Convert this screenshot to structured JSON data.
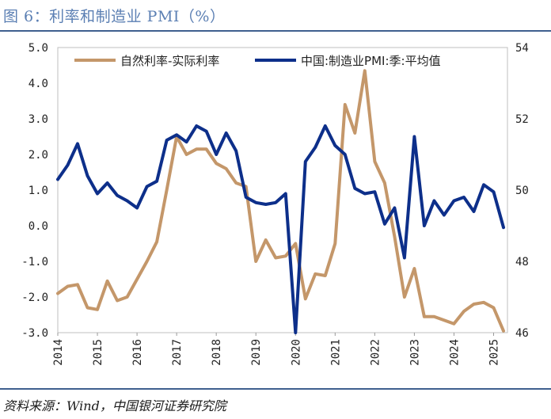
{
  "title": "图 6：利率和制造业 PMI（%）",
  "source": "资料来源：Wind，中国银河证券研究院",
  "chart_data": {
    "type": "line",
    "x_ticks": [
      "2014",
      "2015",
      "2016",
      "2017",
      "2018",
      "2019",
      "2020",
      "2021",
      "2022",
      "2023",
      "2024",
      "2025"
    ],
    "y_left": {
      "min": -3.0,
      "max": 5.0,
      "ticks": [
        "5.0",
        "4.0",
        "3.0",
        "2.0",
        "1.0",
        "0.0",
        "-1.0",
        "-2.0",
        "-3.0"
      ]
    },
    "y_right": {
      "min": 46,
      "max": 54,
      "ticks": [
        "54",
        "52",
        "50",
        "48",
        "46"
      ]
    },
    "legend_position": "top",
    "series": [
      {
        "name": "自然利率-实际利率",
        "axis": "left",
        "color": "#c4976a",
        "points": [
          [
            2014.0,
            -1.9
          ],
          [
            2014.25,
            -1.7
          ],
          [
            2014.5,
            -1.65
          ],
          [
            2014.75,
            -2.3
          ],
          [
            2015.0,
            -2.35
          ],
          [
            2015.25,
            -1.55
          ],
          [
            2015.5,
            -2.1
          ],
          [
            2015.75,
            -2.0
          ],
          [
            2016.0,
            -1.5
          ],
          [
            2016.25,
            -1.0
          ],
          [
            2016.5,
            -0.45
          ],
          [
            2016.75,
            1.0
          ],
          [
            2017.0,
            2.5
          ],
          [
            2017.25,
            2.0
          ],
          [
            2017.5,
            2.15
          ],
          [
            2017.75,
            2.15
          ],
          [
            2018.0,
            1.75
          ],
          [
            2018.25,
            1.6
          ],
          [
            2018.5,
            1.2
          ],
          [
            2018.75,
            1.1
          ],
          [
            2019.0,
            -1.0
          ],
          [
            2019.25,
            -0.4
          ],
          [
            2019.5,
            -0.9
          ],
          [
            2019.75,
            -0.85
          ],
          [
            2020.0,
            -0.5
          ],
          [
            2020.25,
            -2.05
          ],
          [
            2020.5,
            -1.35
          ],
          [
            2020.75,
            -1.4
          ],
          [
            2021.0,
            -0.5
          ],
          [
            2021.25,
            3.4
          ],
          [
            2021.5,
            2.6
          ],
          [
            2021.75,
            4.35
          ],
          [
            2022.0,
            1.8
          ],
          [
            2022.25,
            1.2
          ],
          [
            2022.5,
            -0.3
          ],
          [
            2022.75,
            -2.0
          ],
          [
            2023.0,
            -1.2
          ],
          [
            2023.25,
            -2.55
          ],
          [
            2023.5,
            -2.55
          ],
          [
            2023.75,
            -2.65
          ],
          [
            2024.0,
            -2.75
          ],
          [
            2024.25,
            -2.4
          ],
          [
            2024.5,
            -2.2
          ],
          [
            2024.75,
            -2.15
          ],
          [
            2025.0,
            -2.3
          ],
          [
            2025.25,
            -2.95
          ]
        ]
      },
      {
        "name": "中国:制造业PMI:季:平均值",
        "axis": "right",
        "color": "#0d2f8a",
        "points": [
          [
            2014.0,
            50.3
          ],
          [
            2014.25,
            50.7
          ],
          [
            2014.5,
            51.3
          ],
          [
            2014.75,
            50.4
          ],
          [
            2015.0,
            49.9
          ],
          [
            2015.25,
            50.2
          ],
          [
            2015.5,
            49.85
          ],
          [
            2015.75,
            49.7
          ],
          [
            2016.0,
            49.5
          ],
          [
            2016.25,
            50.1
          ],
          [
            2016.5,
            50.25
          ],
          [
            2016.75,
            51.4
          ],
          [
            2017.0,
            51.55
          ],
          [
            2017.25,
            51.35
          ],
          [
            2017.5,
            51.8
          ],
          [
            2017.75,
            51.65
          ],
          [
            2018.0,
            51.0
          ],
          [
            2018.25,
            51.6
          ],
          [
            2018.5,
            51.1
          ],
          [
            2018.75,
            49.8
          ],
          [
            2019.0,
            49.65
          ],
          [
            2019.25,
            49.6
          ],
          [
            2019.5,
            49.65
          ],
          [
            2019.75,
            49.9
          ],
          [
            2020.0,
            46.0
          ],
          [
            2020.25,
            50.8
          ],
          [
            2020.5,
            51.2
          ],
          [
            2020.75,
            51.8
          ],
          [
            2021.0,
            51.25
          ],
          [
            2021.25,
            51.0
          ],
          [
            2021.5,
            50.05
          ],
          [
            2021.75,
            49.9
          ],
          [
            2022.0,
            49.95
          ],
          [
            2022.25,
            49.05
          ],
          [
            2022.5,
            49.5
          ],
          [
            2022.75,
            48.1
          ],
          [
            2023.0,
            51.5
          ],
          [
            2023.25,
            49.0
          ],
          [
            2023.5,
            49.7
          ],
          [
            2023.75,
            49.3
          ],
          [
            2024.0,
            49.7
          ],
          [
            2024.25,
            49.8
          ],
          [
            2024.5,
            49.4
          ],
          [
            2024.75,
            50.15
          ],
          [
            2025.0,
            49.95
          ],
          [
            2025.25,
            48.95
          ]
        ]
      }
    ]
  }
}
